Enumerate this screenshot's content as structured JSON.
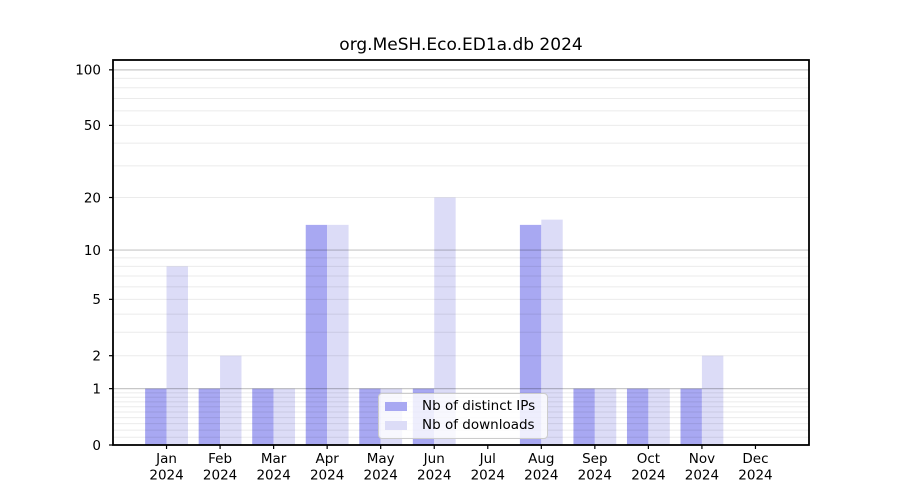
{
  "chart_data": {
    "type": "bar",
    "title": "org.MeSH.Eco.ED1a.db 2024",
    "x_year": "2024",
    "categories": [
      "Jan",
      "Feb",
      "Mar",
      "Apr",
      "May",
      "Jun",
      "Jul",
      "Aug",
      "Sep",
      "Oct",
      "Nov",
      "Dec"
    ],
    "series": [
      {
        "name": "Nb of distinct IPs",
        "color": "#a8a8f2",
        "values": [
          1,
          1,
          1,
          14,
          1,
          1,
          0,
          14,
          1,
          1,
          1,
          0
        ]
      },
      {
        "name": "Nb of downloads",
        "color": "#dcdcf7",
        "values": [
          8,
          2,
          1,
          14,
          1,
          20,
          0,
          15,
          1,
          1,
          2,
          0
        ]
      }
    ],
    "y_ticks": [
      0,
      1,
      2,
      5,
      10,
      20,
      50,
      100
    ],
    "scale": "log1p",
    "ylim": [
      0,
      113
    ],
    "grid": "major lines at 1,10,100; faint minor lines between",
    "legend_position": "lower center",
    "colors": {
      "spine": "#000000",
      "text": "#000000",
      "grid_major": "rgba(0,0,0,0.22)",
      "grid_minor": "rgba(0,0,0,0.08)",
      "legend_border": "#cccccc",
      "legend_background": "rgba(255,255,255,0.8)"
    }
  }
}
